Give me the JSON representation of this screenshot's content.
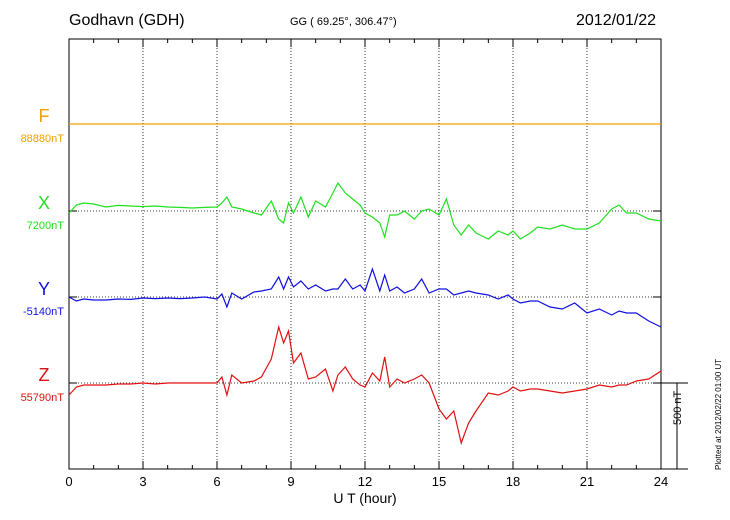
{
  "header": {
    "station": "Godhavn (GDH)",
    "coords": "GG ( 69.25°, 306.47°)",
    "date": "2012/01/22"
  },
  "side_labels": {
    "scale": "500 nT",
    "plotted": "Plotted at 2012/02/22 01:00 UT"
  },
  "chart_data": {
    "type": "line",
    "xlabel": "U T (hour)",
    "xlim": [
      0,
      24
    ],
    "xticks": [
      0,
      3,
      6,
      9,
      12,
      15,
      18,
      21,
      24
    ],
    "scale_bar_nT": 500,
    "grid": true,
    "series": [
      {
        "name": "F",
        "baseline_label": "88880nT",
        "color": "#f0a000",
        "x": [
          0,
          6,
          12,
          18,
          24
        ],
        "y": [
          0,
          0,
          0,
          0,
          0
        ]
      },
      {
        "name": "X",
        "baseline_label": "7200nT",
        "color": "#20e020",
        "x": [
          0,
          0.3,
          0.6,
          1,
          1.5,
          2,
          2.5,
          3,
          3.5,
          4,
          4.5,
          5,
          5.5,
          6,
          6.2,
          6.4,
          6.6,
          7,
          7.5,
          7.8,
          8.2,
          8.5,
          8.7,
          8.9,
          9.1,
          9.4,
          9.7,
          10,
          10.4,
          10.7,
          10.9,
          11.2,
          11.5,
          11.8,
          12,
          12.3,
          12.6,
          12.8,
          13,
          13.3,
          13.6,
          14,
          14.3,
          14.6,
          15,
          15.3,
          15.6,
          15.9,
          16.2,
          16.5,
          17,
          17.4,
          17.8,
          18,
          18.3,
          18.7,
          19,
          19.5,
          20,
          20.5,
          21,
          21.5,
          22,
          22.3,
          22.6,
          23,
          23.5,
          24
        ],
        "y": [
          -10,
          30,
          40,
          35,
          20,
          28,
          25,
          22,
          25,
          20,
          18,
          15,
          18,
          20,
          40,
          70,
          20,
          10,
          -10,
          -20,
          50,
          -40,
          -60,
          40,
          -10,
          70,
          -30,
          50,
          20,
          90,
          140,
          90,
          60,
          30,
          -10,
          -30,
          -60,
          -130,
          -20,
          -20,
          0,
          -40,
          0,
          10,
          -20,
          60,
          -70,
          -120,
          -70,
          -110,
          -140,
          -100,
          -120,
          -100,
          -140,
          -110,
          -80,
          -90,
          -70,
          -90,
          -90,
          -60,
          10,
          30,
          -10,
          -10,
          -40,
          -50
        ]
      },
      {
        "name": "Y",
        "baseline_label": "-5140nT",
        "color": "#1010e0",
        "x": [
          0,
          0.3,
          0.6,
          1,
          1.5,
          2,
          2.5,
          3,
          3.5,
          4,
          4.5,
          5,
          5.5,
          6,
          6.2,
          6.4,
          6.6,
          7,
          7.5,
          7.8,
          8.2,
          8.5,
          8.7,
          8.9,
          9.1,
          9.4,
          9.7,
          10,
          10.4,
          10.7,
          10.9,
          11.2,
          11.5,
          11.8,
          12,
          12.3,
          12.6,
          12.8,
          13,
          13.3,
          13.6,
          14,
          14.3,
          14.6,
          15,
          15.3,
          15.6,
          15.9,
          16.2,
          16.5,
          17,
          17.4,
          17.8,
          18,
          18.3,
          18.7,
          19,
          19.5,
          20,
          20.5,
          21,
          21.5,
          22,
          22.3,
          22.6,
          23,
          23.5,
          24
        ],
        "y": [
          0,
          -20,
          -10,
          -15,
          -15,
          -10,
          -12,
          -5,
          -8,
          -5,
          -8,
          -5,
          0,
          -10,
          15,
          -50,
          20,
          -10,
          25,
          30,
          40,
          100,
          40,
          100,
          50,
          80,
          40,
          60,
          30,
          40,
          40,
          90,
          40,
          60,
          30,
          140,
          30,
          110,
          30,
          50,
          20,
          40,
          90,
          20,
          40,
          40,
          10,
          20,
          30,
          20,
          10,
          -10,
          10,
          -10,
          -30,
          -20,
          -20,
          -50,
          -60,
          -30,
          -80,
          -60,
          -90,
          -70,
          -80,
          -80,
          -120,
          -150
        ]
      },
      {
        "name": "Z",
        "baseline_label": "55790nT",
        "color": "#e01010",
        "x": [
          0,
          0.3,
          0.6,
          1,
          1.5,
          2,
          2.5,
          3,
          3.5,
          4,
          4.5,
          5,
          5.5,
          6,
          6.2,
          6.4,
          6.6,
          7,
          7.5,
          7.8,
          8.2,
          8.5,
          8.7,
          8.9,
          9.1,
          9.4,
          9.7,
          10,
          10.4,
          10.7,
          10.9,
          11.2,
          11.5,
          11.8,
          12,
          12.3,
          12.6,
          12.8,
          13,
          13.3,
          13.6,
          14,
          14.3,
          14.6,
          15,
          15.3,
          15.6,
          15.9,
          16.2,
          16.5,
          17,
          17.4,
          17.8,
          18,
          18.3,
          18.7,
          19,
          19.5,
          20,
          20.5,
          21,
          21.5,
          22,
          22.3,
          22.6,
          23,
          23.5,
          24
        ],
        "y": [
          -60,
          -20,
          -10,
          -10,
          -10,
          -5,
          -5,
          0,
          -5,
          0,
          0,
          0,
          0,
          0,
          30,
          -60,
          40,
          0,
          10,
          30,
          120,
          280,
          200,
          260,
          100,
          150,
          20,
          30,
          70,
          -40,
          40,
          80,
          20,
          -10,
          -20,
          50,
          10,
          130,
          -20,
          20,
          0,
          20,
          40,
          0,
          -130,
          -180,
          -140,
          -300,
          -200,
          -140,
          -50,
          -60,
          -40,
          -20,
          -40,
          -30,
          -30,
          -40,
          -50,
          -40,
          -30,
          -10,
          -20,
          -10,
          -10,
          10,
          20,
          60
        ]
      }
    ]
  }
}
